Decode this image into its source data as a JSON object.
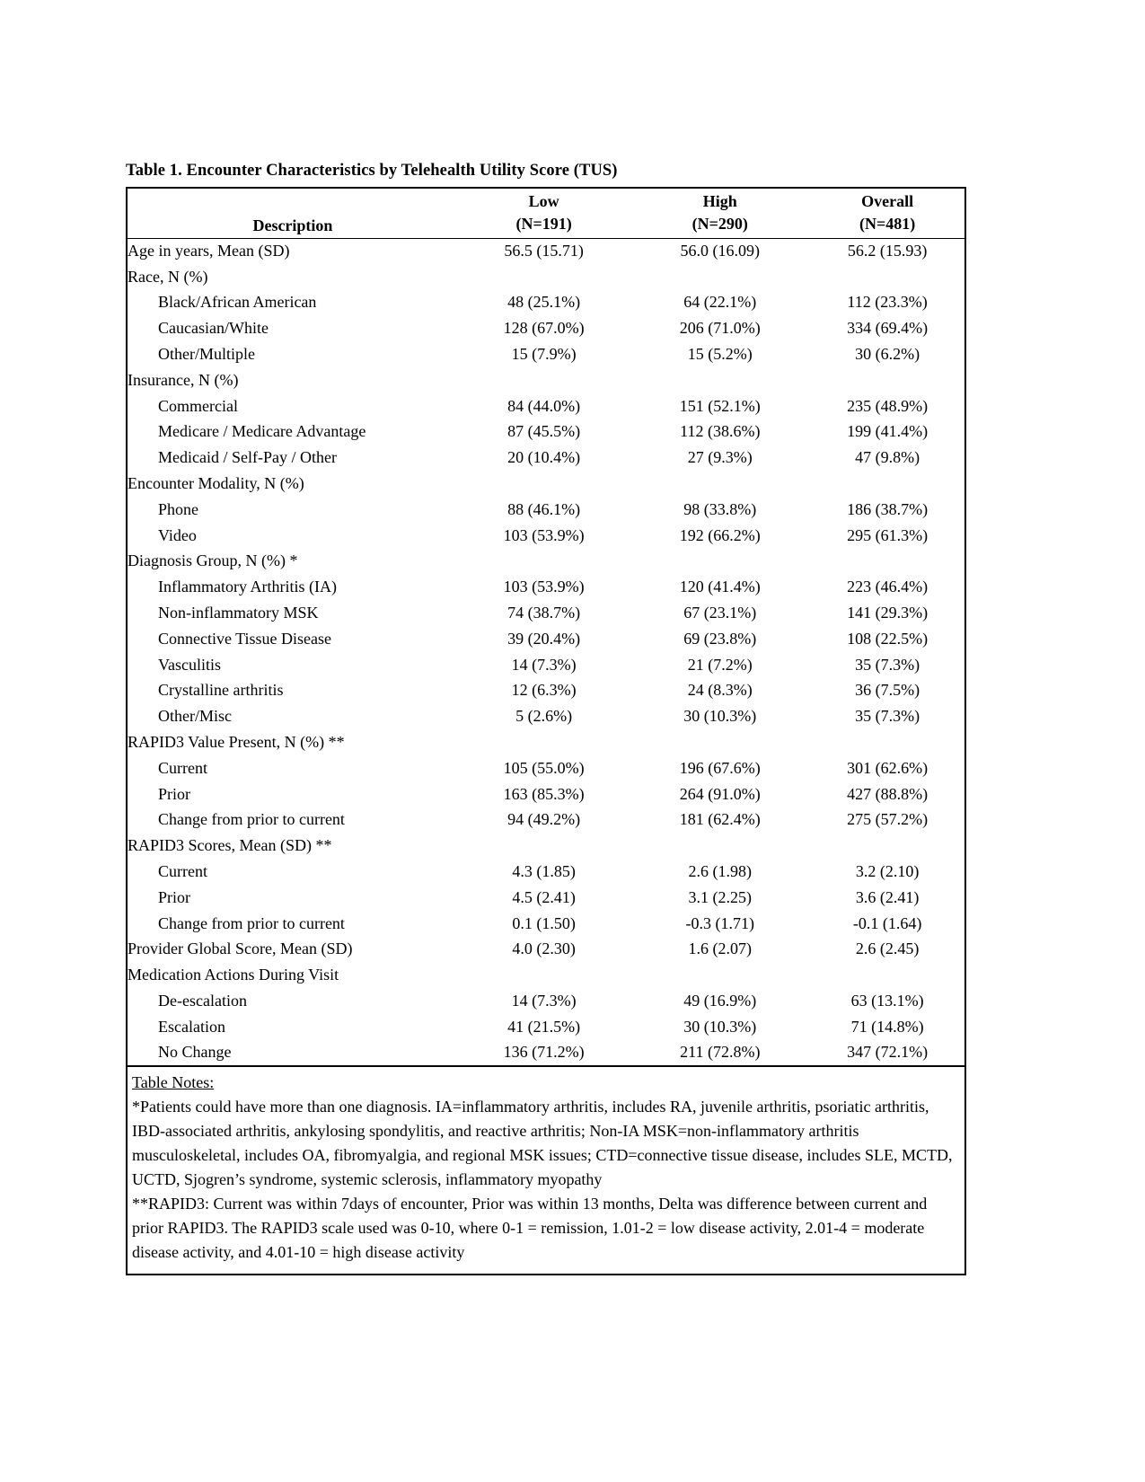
{
  "page": {
    "table_title": "Table 1. Encounter Characteristics by Telehealth Utility Score (TUS)"
  },
  "table": {
    "header": {
      "description": "Description",
      "columns": [
        {
          "label": "Low",
          "n": "(N=191)"
        },
        {
          "label": "High",
          "n": "(N=290)"
        },
        {
          "label": "Overall",
          "n": "(N=481)"
        }
      ]
    },
    "rows": [
      {
        "label": "Age in years, Mean (SD)",
        "indent": false,
        "values": [
          "56.5 (15.71)",
          "56.0 (16.09)",
          "56.2 (15.93)"
        ]
      },
      {
        "label": "Race, N (%)",
        "indent": false,
        "values": []
      },
      {
        "label": "Black/African American",
        "indent": true,
        "values": [
          "48 (25.1%)",
          "64 (22.1%)",
          "112 (23.3%)"
        ]
      },
      {
        "label": "Caucasian/White",
        "indent": true,
        "values": [
          "128 (67.0%)",
          "206 (71.0%)",
          "334 (69.4%)"
        ]
      },
      {
        "label": "Other/Multiple",
        "indent": true,
        "values": [
          "15 (7.9%)",
          "15 (5.2%)",
          "30 (6.2%)"
        ]
      },
      {
        "label": "Insurance, N (%)",
        "indent": false,
        "values": []
      },
      {
        "label": "Commercial",
        "indent": true,
        "values": [
          "84 (44.0%)",
          "151 (52.1%)",
          "235 (48.9%)"
        ]
      },
      {
        "label": "Medicare / Medicare Advantage",
        "indent": true,
        "values": [
          "87 (45.5%)",
          "112 (38.6%)",
          "199 (41.4%)"
        ]
      },
      {
        "label": "Medicaid / Self-Pay / Other",
        "indent": true,
        "values": [
          "20 (10.4%)",
          "27 (9.3%)",
          "47 (9.8%)"
        ]
      },
      {
        "label": "Encounter Modality, N (%)",
        "indent": false,
        "values": []
      },
      {
        "label": "Phone",
        "indent": true,
        "values": [
          "88 (46.1%)",
          "98 (33.8%)",
          "186 (38.7%)"
        ]
      },
      {
        "label": "Video",
        "indent": true,
        "values": [
          "103 (53.9%)",
          "192 (66.2%)",
          "295 (61.3%)"
        ]
      },
      {
        "label": "Diagnosis Group, N (%) *",
        "indent": false,
        "values": []
      },
      {
        "label": "Inflammatory Arthritis (IA)",
        "indent": true,
        "values": [
          "103 (53.9%)",
          "120 (41.4%)",
          "223 (46.4%)"
        ]
      },
      {
        "label": "Non-inflammatory MSK",
        "indent": true,
        "values": [
          "74 (38.7%)",
          "67 (23.1%)",
          "141 (29.3%)"
        ]
      },
      {
        "label": "Connective Tissue Disease",
        "indent": true,
        "values": [
          "39 (20.4%)",
          "69 (23.8%)",
          "108 (22.5%)"
        ]
      },
      {
        "label": "Vasculitis",
        "indent": true,
        "values": [
          "14 (7.3%)",
          "21 (7.2%)",
          "35 (7.3%)"
        ]
      },
      {
        "label": "Crystalline arthritis",
        "indent": true,
        "values": [
          "12 (6.3%)",
          "24 (8.3%)",
          "36 (7.5%)"
        ]
      },
      {
        "label": "Other/Misc",
        "indent": true,
        "values": [
          "5 (2.6%)",
          "30 (10.3%)",
          "35 (7.3%)"
        ]
      },
      {
        "label": "RAPID3 Value Present, N (%) **",
        "indent": false,
        "values": []
      },
      {
        "label": "Current",
        "indent": true,
        "values": [
          "105 (55.0%)",
          "196 (67.6%)",
          "301 (62.6%)"
        ]
      },
      {
        "label": "Prior",
        "indent": true,
        "values": [
          "163 (85.3%)",
          "264 (91.0%)",
          "427 (88.8%)"
        ]
      },
      {
        "label": "Change from prior to current",
        "indent": true,
        "values": [
          "94 (49.2%)",
          "181 (62.4%)",
          "275 (57.2%)"
        ]
      },
      {
        "label": "RAPID3 Scores, Mean (SD) **",
        "indent": false,
        "values": []
      },
      {
        "label": "Current",
        "indent": true,
        "values": [
          "4.3 (1.85)",
          "2.6 (1.98)",
          "3.2 (2.10)"
        ]
      },
      {
        "label": "Prior",
        "indent": true,
        "values": [
          "4.5 (2.41)",
          "3.1 (2.25)",
          "3.6 (2.41)"
        ]
      },
      {
        "label": "Change from prior to current",
        "indent": true,
        "values": [
          "0.1 (1.50)",
          "-0.3 (1.71)",
          "-0.1 (1.64)"
        ]
      },
      {
        "label": "Provider Global Score, Mean (SD)",
        "indent": false,
        "values": [
          "4.0 (2.30)",
          "1.6 (2.07)",
          "2.6 (2.45)"
        ]
      },
      {
        "label": "Medication Actions During Visit",
        "indent": false,
        "values": []
      },
      {
        "label": "De-escalation",
        "indent": true,
        "values": [
          "14 (7.3%)",
          "49 (16.9%)",
          "63 (13.1%)"
        ]
      },
      {
        "label": "Escalation",
        "indent": true,
        "values": [
          "41 (21.5%)",
          "30 (10.3%)",
          "71 (14.8%)"
        ]
      },
      {
        "label": "No Change",
        "indent": true,
        "values": [
          "136 (71.2%)",
          "211 (72.8%)",
          "347 (72.1%)"
        ]
      }
    ]
  },
  "notes": {
    "heading": "Table Notes:",
    "items": [
      "*Patients could have more than one diagnosis. IA=inflammatory arthritis, includes RA, juvenile arthritis, psoriatic arthritis, IBD-associated arthritis, ankylosing spondylitis, and reactive arthritis; Non-IA MSK=non-inflammatory arthritis musculoskeletal, includes OA, fibromyalgia, and regional MSK issues; CTD=connective tissue disease, includes SLE, MCTD, UCTD, Sjogren’s syndrome, systemic sclerosis, inflammatory myopathy",
      "**RAPID3: Current was within 7days of encounter, Prior was within 13 months, Delta was difference between current and prior RAPID3. The RAPID3 scale used was 0-10, where 0-1 = remission, 1.01-2 = low disease activity, 2.01-4 = moderate disease activity, and 4.01-10 = high disease activity"
    ]
  }
}
